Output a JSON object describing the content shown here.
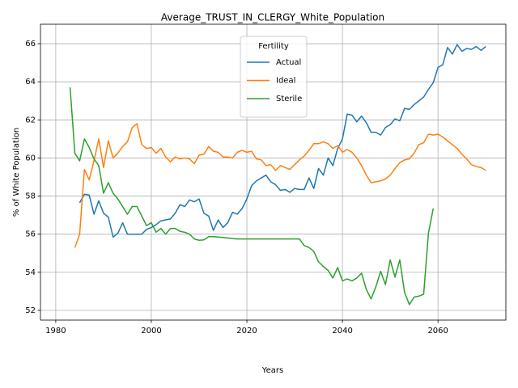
{
  "chart_data": {
    "type": "line",
    "title": "Average_TRUST_IN_CLERGY_White_Population",
    "x_label": "Years",
    "y_label": "% of White Population",
    "x": [
      1983,
      1984,
      1985,
      1986,
      1987,
      1988,
      1989,
      1990,
      1991,
      1992,
      1993,
      1994,
      1995,
      1996,
      1997,
      1998,
      1999,
      2000,
      2001,
      2002,
      2003,
      2004,
      2005,
      2006,
      2007,
      2008,
      2009,
      2010,
      2011,
      2012,
      2013,
      2014,
      2015,
      2016,
      2017,
      2018,
      2019,
      2020,
      2021,
      2022,
      2023,
      2024,
      2025,
      2026,
      2027,
      2028,
      2029,
      2030,
      2031,
      2032,
      2033,
      2034,
      2035,
      2036,
      2037,
      2038,
      2039,
      2040,
      2041,
      2042,
      2043,
      2044,
      2045,
      2046,
      2047,
      2048,
      2049,
      2050,
      2051,
      2052,
      2053,
      2054,
      2055,
      2056,
      2057,
      2058,
      2059,
      2060,
      2061,
      2062,
      2063,
      2064,
      2065,
      2066,
      2067,
      2068,
      2069,
      2070
    ],
    "series": [
      {
        "name": "Actual",
        "color": "#1f77b4",
        "values": [
          null,
          null,
          57.65,
          58.1,
          58.05,
          57.05,
          57.75,
          57.1,
          56.9,
          55.85,
          56.05,
          56.6,
          56.0,
          56.0,
          56.0,
          56.0,
          56.25,
          56.35,
          56.5,
          56.7,
          56.75,
          56.8,
          57.1,
          57.55,
          57.45,
          57.8,
          57.7,
          57.85,
          57.1,
          56.95,
          56.2,
          56.75,
          56.35,
          56.6,
          57.15,
          57.05,
          57.35,
          57.85,
          58.55,
          58.8,
          58.95,
          59.1,
          58.75,
          58.6,
          58.3,
          58.35,
          58.2,
          58.4,
          58.35,
          58.35,
          58.95,
          58.4,
          59.45,
          59.1,
          60.0,
          59.6,
          60.5,
          61.0,
          62.3,
          62.25,
          61.9,
          62.2,
          61.85,
          61.35,
          61.35,
          61.2,
          61.6,
          61.75,
          62.05,
          61.95,
          62.6,
          62.55,
          62.8,
          63.0,
          63.2,
          63.6,
          63.95,
          64.75,
          64.9,
          65.8,
          65.45,
          65.95,
          65.6,
          65.75,
          65.7,
          65.85,
          65.65,
          65.85
        ]
      },
      {
        "name": "Ideal",
        "color": "#ff7f0e",
        "values": [
          null,
          55.3,
          56.0,
          59.4,
          58.85,
          59.85,
          61.0,
          59.5,
          60.9,
          60.0,
          60.25,
          60.6,
          60.85,
          61.6,
          61.8,
          60.7,
          60.5,
          60.55,
          60.25,
          60.5,
          60.05,
          59.8,
          60.05,
          59.95,
          60.0,
          59.95,
          59.7,
          60.15,
          60.2,
          60.6,
          60.35,
          60.3,
          60.05,
          60.05,
          60.0,
          60.3,
          60.4,
          60.3,
          60.35,
          59.95,
          59.9,
          59.6,
          59.65,
          59.35,
          59.6,
          59.5,
          59.4,
          59.65,
          59.9,
          60.1,
          60.4,
          60.75,
          60.75,
          60.85,
          60.75,
          60.5,
          60.65,
          60.3,
          60.45,
          60.3,
          60.0,
          59.6,
          59.1,
          58.7,
          58.75,
          58.8,
          58.9,
          59.1,
          59.45,
          59.75,
          59.9,
          59.95,
          60.25,
          60.7,
          60.8,
          61.25,
          61.2,
          61.25,
          61.1,
          60.9,
          60.7,
          60.5,
          60.2,
          59.95,
          59.65,
          59.55,
          59.5,
          59.35
        ]
      },
      {
        "name": "Sterile",
        "color": "#2ca02c",
        "values": [
          63.7,
          60.25,
          59.85,
          61.0,
          60.55,
          59.95,
          59.6,
          58.15,
          58.7,
          58.15,
          57.85,
          57.45,
          57.05,
          57.45,
          57.45,
          56.95,
          56.45,
          56.6,
          56.1,
          56.3,
          56.0,
          56.3,
          56.3,
          56.15,
          56.1,
          56.0,
          55.75,
          55.68,
          55.7,
          55.87,
          55.87,
          55.85,
          55.83,
          55.8,
          55.77,
          55.75,
          55.75,
          55.75,
          55.75,
          55.75,
          55.75,
          55.75,
          55.75,
          55.75,
          55.75,
          55.75,
          55.75,
          55.75,
          55.75,
          55.4,
          55.3,
          55.1,
          54.55,
          54.3,
          54.1,
          53.7,
          54.25,
          53.55,
          53.65,
          53.55,
          53.7,
          53.95,
          53.1,
          52.6,
          53.25,
          54.05,
          53.35,
          54.65,
          53.75,
          54.65,
          52.95,
          52.3,
          52.7,
          52.75,
          52.85,
          56.05,
          57.35,
          null,
          null,
          null,
          null,
          null,
          null,
          null,
          null,
          null,
          null,
          null
        ]
      }
    ],
    "legend_title": "Fertility",
    "legend_position": "upper center",
    "xlim": [
      1976.8,
      2074.2
    ],
    "xticks": [
      1980,
      2000,
      2020,
      2040,
      2060
    ],
    "ylim": [
      51.49,
      67.02
    ],
    "yticks": [
      52,
      54,
      56,
      58,
      60,
      62,
      64,
      66
    ],
    "grid": true
  }
}
